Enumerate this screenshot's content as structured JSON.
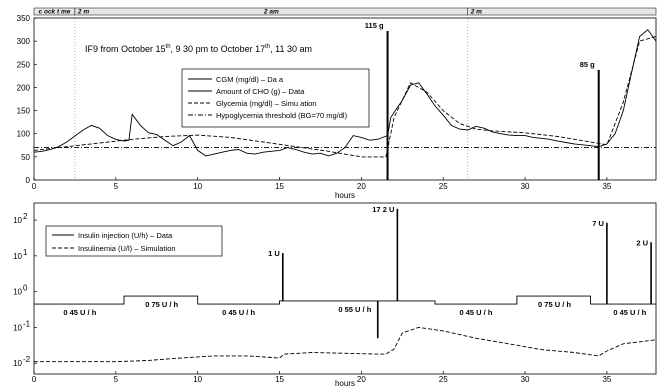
{
  "chart_data": [
    {
      "type": "line",
      "title": "IF9 from October 15th, 9 30 pm to October 17th, 11 30 am",
      "title_parts": [
        "IF9 from October 15",
        "th",
        ", 9 30 pm to October 17",
        "th",
        ", 11 30 am"
      ],
      "xlabel": "hours",
      "ylabel": "",
      "xlim": [
        0,
        38
      ],
      "ylim": [
        0,
        350
      ],
      "x_ticks": [
        0,
        5,
        10,
        15,
        20,
        25,
        30,
        35
      ],
      "y_ticks": [
        0,
        50,
        100,
        150,
        200,
        250,
        300,
        350
      ],
      "grid": false,
      "legend_position": "upper-middle",
      "period_band": {
        "segments": [
          {
            "x0": 0,
            "x1": 2.5,
            "label": "c ock t me"
          },
          {
            "x0": 2.5,
            "x1": 26.5,
            "label": "2 am"
          },
          {
            "x0": 26.5,
            "x1": 38,
            "label": ""
          }
        ],
        "marks": [
          {
            "x": 2.5,
            "label": "2 m"
          },
          {
            "x": 26.5,
            "label": "2 m"
          }
        ]
      },
      "midnight_lines": [
        2.5,
        26.5
      ],
      "series": [
        {
          "name": "CGM (mg/dl) – Da a",
          "style": "solid",
          "x": [
            0,
            0.5,
            1,
            1.5,
            2,
            2.5,
            3,
            3.5,
            4,
            4.5,
            5,
            5.5,
            5.8,
            6,
            6.5,
            7,
            7.5,
            8,
            8.5,
            9,
            9.5,
            10,
            10.5,
            11,
            11.5,
            12,
            12.5,
            13,
            13.5,
            14,
            14.5,
            15,
            15.5,
            16,
            16.5,
            17,
            17.5,
            18,
            18.5,
            19,
            19.5,
            20,
            20.5,
            21,
            21.6,
            21.8,
            22,
            22.5,
            23,
            23.5,
            24,
            24.5,
            25,
            25.5,
            26,
            26.5,
            27,
            27.5,
            28,
            28.5,
            29,
            29.5,
            30,
            30.5,
            31,
            31.5,
            32,
            32.5,
            33,
            33.5,
            34,
            34.5,
            35,
            35.5,
            36,
            36.5,
            37,
            37.5,
            38
          ],
          "y": [
            60,
            62,
            66,
            72,
            82,
            95,
            108,
            118,
            112,
            96,
            88,
            84,
            86,
            142,
            118,
            102,
            98,
            86,
            74,
            82,
            96,
            64,
            52,
            56,
            60,
            64,
            66,
            58,
            56,
            60,
            62,
            64,
            70,
            66,
            60,
            56,
            58,
            52,
            58,
            70,
            96,
            92,
            86,
            88,
            96,
            135,
            146,
            172,
            205,
            210,
            186,
            160,
            140,
            118,
            110,
            108,
            116,
            112,
            104,
            100,
            97,
            96,
            96,
            92,
            90,
            88,
            84,
            81,
            78,
            76,
            74,
            72,
            78,
            100,
            150,
            230,
            310,
            325,
            300
          ]
        },
        {
          "name": "Glycemia (mg/dl) – Simu ation",
          "style": "dashed",
          "x": [
            0,
            2,
            4,
            6,
            8,
            10,
            12,
            14,
            16,
            18,
            20,
            21.5,
            22,
            23,
            24,
            25,
            26,
            27,
            28,
            30,
            32,
            34,
            35,
            36,
            37,
            38
          ],
          "y": [
            64,
            72,
            80,
            88,
            94,
            97,
            92,
            82,
            72,
            62,
            50,
            50,
            135,
            210,
            190,
            150,
            122,
            110,
            106,
            102,
            94,
            82,
            76,
            168,
            300,
            310
          ]
        },
        {
          "name": "Hypoglycemia threshold (BG=70 mg/dl)",
          "style": "dashdot",
          "x": [
            0,
            38
          ],
          "y": [
            70,
            70
          ]
        }
      ],
      "stems": [
        {
          "name": "Amount of CHO (g) – Data",
          "x": 21.6,
          "value": 115,
          "label": "115 g"
        },
        {
          "name": "Amount of CHO (g) – Data",
          "x": 34.5,
          "value": 85,
          "label": "85 g"
        }
      ]
    },
    {
      "type": "line",
      "xlabel": "hours",
      "ylabel": "",
      "xlim": [
        0,
        38
      ],
      "y_scale": "log",
      "ylim": [
        0.005,
        300
      ],
      "x_ticks": [
        0,
        5,
        10,
        15,
        20,
        25,
        30,
        35
      ],
      "y_ticks": [
        0.01,
        0.1,
        1,
        10,
        100
      ],
      "y_tick_labels": [
        {
          "base": "10",
          "exp": "-2"
        },
        {
          "base": "10",
          "exp": "-1"
        },
        {
          "base": "10",
          "exp": "0"
        },
        {
          "base": "10",
          "exp": "1"
        },
        {
          "base": "10",
          "exp": "2"
        }
      ],
      "grid": false,
      "legend_position": "upper-left",
      "series": [
        {
          "name": "Insulin injection (U/h) – Data",
          "style": "step",
          "x": [
            0,
            5.5,
            5.5,
            10,
            10,
            15,
            15,
            19.5,
            19.5,
            24.5,
            24.5,
            29.5,
            29.5,
            34,
            34,
            38
          ],
          "y": [
            0.45,
            0.45,
            0.75,
            0.75,
            0.45,
            0.45,
            0.55,
            0.55,
            0.55,
            0.55,
            0.45,
            0.45,
            0.75,
            0.75,
            0.45,
            0.45
          ]
        },
        {
          "name": "Insulinemia (U/l) – Simulation",
          "style": "dashed",
          "x": [
            0,
            2,
            5,
            7,
            9,
            11,
            13,
            15,
            15.3,
            17,
            19,
            21,
            21.5,
            22,
            22.5,
            23.5,
            25,
            27,
            29,
            31,
            33,
            34.5,
            35,
            36,
            38
          ],
          "y": [
            0.011,
            0.011,
            0.011,
            0.012,
            0.014,
            0.016,
            0.016,
            0.014,
            0.018,
            0.02,
            0.019,
            0.018,
            0.018,
            0.025,
            0.07,
            0.1,
            0.08,
            0.05,
            0.035,
            0.024,
            0.02,
            0.016,
            0.022,
            0.035,
            0.045
          ]
        }
      ],
      "spikes": [
        {
          "x": 15.2,
          "value": 1,
          "label": "1 U"
        },
        {
          "x": 22.2,
          "value": 17.2,
          "label": "17 2 U"
        },
        {
          "x": 35,
          "value": 7,
          "label": "7 U"
        },
        {
          "x": 37.7,
          "value": 2,
          "label": "2 U"
        }
      ],
      "dips": [
        {
          "x": 21,
          "value": 0.05
        }
      ],
      "rate_labels": [
        {
          "x": 2.8,
          "label": "0 45 U / h"
        },
        {
          "x": 7.8,
          "label": "0 75 U / h"
        },
        {
          "x": 12.5,
          "label": "0 45 U / h"
        },
        {
          "x": 19.6,
          "label": "0 55 U / h"
        },
        {
          "x": 27,
          "label": "0 45 U / h"
        },
        {
          "x": 31.8,
          "label": "0 75 U / h"
        },
        {
          "x": 36.4,
          "label": "0 45 U / h"
        }
      ]
    }
  ]
}
